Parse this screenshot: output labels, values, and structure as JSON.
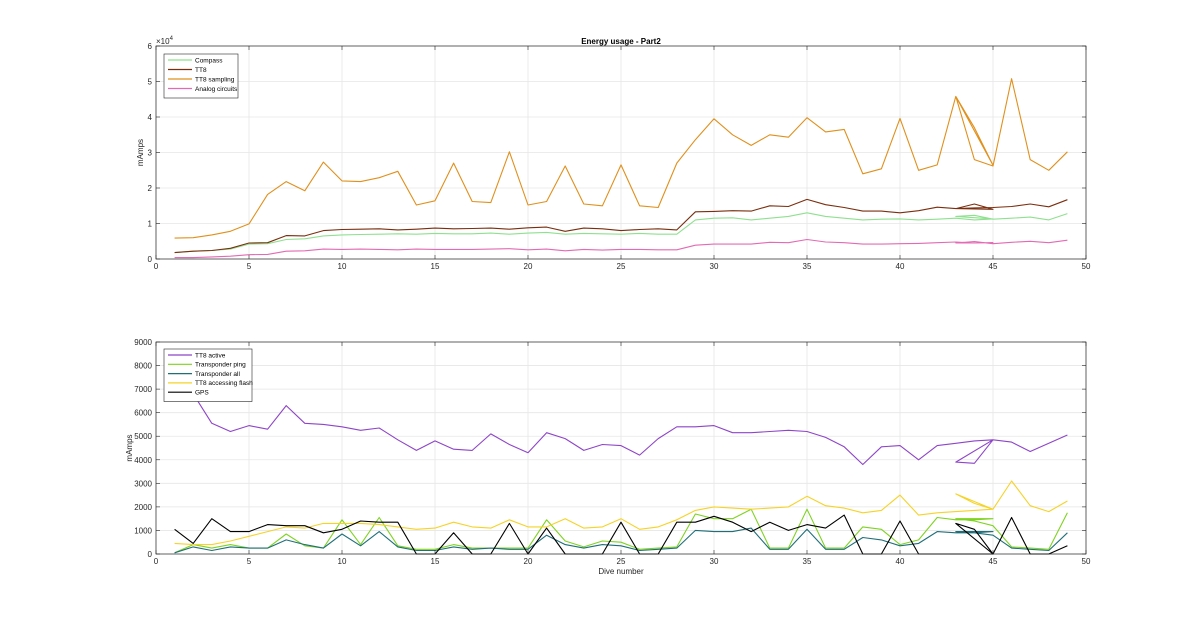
{
  "chart_data": [
    {
      "type": "line",
      "title": "Energy usage - Part2",
      "xlabel": "",
      "ylabel": "mAmps",
      "exponent_label": "×10",
      "exponent_power": "4",
      "xlim": [
        0,
        50
      ],
      "ylim": [
        0,
        60000
      ],
      "xticks": [
        0,
        5,
        10,
        15,
        20,
        25,
        30,
        35,
        40,
        45,
        50
      ],
      "yticks": [
        0,
        10000,
        20000,
        30000,
        40000,
        50000,
        60000
      ],
      "ytick_labels": [
        "0",
        "1",
        "2",
        "3",
        "4",
        "5",
        "6"
      ],
      "grid": true,
      "legend_position": "top-left",
      "x": [
        1,
        2,
        3,
        4,
        5,
        6,
        7,
        8,
        9,
        10,
        11,
        12,
        13,
        14,
        15,
        16,
        17,
        18,
        19,
        20,
        21,
        22,
        23,
        24,
        25,
        26,
        27,
        28,
        29,
        30,
        31,
        32,
        33,
        34,
        35,
        36,
        37,
        38,
        39,
        40,
        41,
        42,
        43,
        44,
        45,
        43,
        44,
        45,
        46,
        47,
        48,
        49
      ],
      "series": [
        {
          "name": "Compass",
          "color": "#8fe08f",
          "values": [
            1800,
            2200,
            2400,
            2800,
            4200,
            4300,
            5500,
            5700,
            6500,
            6800,
            6900,
            7000,
            7100,
            7000,
            7200,
            7100,
            7100,
            7300,
            7000,
            7300,
            7500,
            7000,
            7200,
            7100,
            7000,
            7200,
            7000,
            7000,
            11000,
            11500,
            11600,
            11000,
            11500,
            12000,
            13000,
            12000,
            11500,
            11000,
            11200,
            11300,
            11000,
            11200,
            11500,
            11000,
            11300,
            12000,
            12300,
            11200,
            11500,
            11800,
            11000,
            12800
          ]
        },
        {
          "name": "TT8",
          "color": "#7a2e0e",
          "values": [
            1800,
            2200,
            2400,
            3000,
            4500,
            4600,
            6600,
            6500,
            8000,
            8300,
            8400,
            8500,
            8200,
            8400,
            8700,
            8500,
            8600,
            8700,
            8400,
            8800,
            9000,
            7800,
            8700,
            8500,
            8000,
            8300,
            8500,
            8200,
            13300,
            13400,
            13600,
            13500,
            15000,
            14800,
            16800,
            15300,
            14500,
            13500,
            13500,
            13000,
            13600,
            14600,
            14200,
            15500,
            14000,
            14200,
            14400,
            14500,
            14800,
            15500,
            14700,
            16700
          ]
        },
        {
          "name": "TT8 sampling",
          "color": "#e0901c",
          "values": [
            5900,
            6000,
            6800,
            7800,
            9900,
            18200,
            21800,
            19200,
            27300,
            22000,
            21800,
            22900,
            24700,
            15200,
            16400,
            27000,
            16200,
            15900,
            30200,
            15200,
            16200,
            26200,
            15500,
            15000,
            26500,
            15000,
            14500,
            27000,
            33600,
            39500,
            35000,
            32000,
            35000,
            34300,
            39800,
            35800,
            36500,
            24000,
            25400,
            39600,
            25000,
            26500,
            45800,
            37000,
            26400,
            45800,
            28000,
            26200,
            50800,
            28000,
            25000,
            30200
          ]
        },
        {
          "name": "Analog circuits",
          "color": "#e36ab4",
          "values": [
            400,
            400,
            600,
            800,
            1200,
            1300,
            2200,
            2300,
            2800,
            2700,
            2800,
            2700,
            2600,
            2800,
            2700,
            2700,
            2700,
            2800,
            2900,
            2600,
            2800,
            2300,
            2700,
            2500,
            2700,
            2700,
            2600,
            2600,
            3900,
            4200,
            4200,
            4200,
            4700,
            4600,
            5500,
            4800,
            4600,
            4200,
            4200,
            4300,
            4400,
            4600,
            4800,
            4500,
            4600,
            4500,
            4900,
            4300,
            4700,
            5000,
            4600,
            5300
          ]
        }
      ]
    },
    {
      "type": "line",
      "title": "",
      "xlabel": "Dive number",
      "ylabel": "mAmps",
      "xlim": [
        0,
        50
      ],
      "ylim": [
        0,
        9000
      ],
      "xticks": [
        0,
        5,
        10,
        15,
        20,
        25,
        30,
        35,
        40,
        45,
        50
      ],
      "yticks": [
        0,
        1000,
        2000,
        3000,
        4000,
        5000,
        6000,
        7000,
        8000,
        9000
      ],
      "ytick_labels": [
        "0",
        "1000",
        "2000",
        "3000",
        "4000",
        "5000",
        "6000",
        "7000",
        "8000",
        "9000"
      ],
      "grid": true,
      "legend_position": "top-left",
      "x": [
        1,
        2,
        3,
        4,
        5,
        6,
        7,
        8,
        9,
        10,
        11,
        12,
        13,
        14,
        15,
        16,
        17,
        18,
        19,
        20,
        21,
        22,
        23,
        24,
        25,
        26,
        27,
        28,
        29,
        30,
        31,
        32,
        33,
        34,
        35,
        36,
        37,
        38,
        39,
        40,
        41,
        42,
        43,
        44,
        45,
        43,
        44,
        45,
        46,
        47,
        48,
        49
      ],
      "series": [
        {
          "name": "TT8 active",
          "color": "#8e44c8",
          "values": [
            7500,
            6800,
            5550,
            5200,
            5450,
            5300,
            6300,
            5550,
            5500,
            5400,
            5250,
            5350,
            4850,
            4400,
            4800,
            4450,
            4400,
            5100,
            4650,
            4300,
            5150,
            4900,
            4400,
            4650,
            4600,
            4200,
            4900,
            5400,
            5400,
            5450,
            5150,
            5150,
            5200,
            5250,
            5200,
            4950,
            4550,
            3800,
            4550,
            4600,
            4000,
            4600,
            4700,
            4800,
            4850,
            3900,
            3850,
            4850,
            4750,
            4350,
            4700,
            5050
          ]
        },
        {
          "name": "Transponder ping",
          "color": "#7ed321",
          "values": [
            50,
            400,
            250,
            400,
            250,
            250,
            850,
            350,
            250,
            1450,
            400,
            1550,
            350,
            200,
            200,
            400,
            250,
            250,
            250,
            250,
            1450,
            550,
            300,
            550,
            500,
            200,
            250,
            300,
            1700,
            1500,
            1500,
            1900,
            250,
            250,
            1900,
            250,
            250,
            1150,
            1050,
            400,
            600,
            1550,
            1450,
            1450,
            1500,
            1500,
            1400,
            1200,
            300,
            250,
            200,
            1750
          ]
        },
        {
          "name": "Transponder all",
          "color": "#1f6f7a",
          "values": [
            50,
            300,
            150,
            300,
            250,
            250,
            600,
            400,
            250,
            850,
            350,
            950,
            300,
            150,
            150,
            300,
            200,
            250,
            200,
            200,
            800,
            400,
            250,
            400,
            350,
            150,
            200,
            250,
            1000,
            950,
            950,
            1100,
            200,
            200,
            1050,
            200,
            200,
            700,
            600,
            350,
            450,
            950,
            900,
            900,
            950,
            950,
            900,
            800,
            250,
            200,
            150,
            900
          ]
        },
        {
          "name": "TT8 accessing flash",
          "color": "#f5d327",
          "values": [
            450,
            400,
            400,
            550,
            750,
            950,
            1150,
            1100,
            1300,
            1300,
            1300,
            1250,
            1150,
            1050,
            1100,
            1350,
            1150,
            1100,
            1450,
            1150,
            1150,
            1500,
            1100,
            1150,
            1500,
            1050,
            1150,
            1450,
            1850,
            2000,
            1950,
            1900,
            1950,
            2000,
            2450,
            2050,
            1950,
            1750,
            1850,
            2500,
            1650,
            1750,
            1800,
            1850,
            1900,
            2550,
            2150,
            1900,
            3100,
            2050,
            1800,
            2250
          ]
        },
        {
          "name": "GPS",
          "color": "#000000",
          "values": [
            1050,
            450,
            1500,
            950,
            950,
            1250,
            1200,
            1200,
            900,
            1050,
            1400,
            1350,
            1350,
            0,
            0,
            900,
            0,
            0,
            1300,
            0,
            1100,
            0,
            0,
            0,
            1350,
            0,
            0,
            1350,
            1350,
            1600,
            1350,
            950,
            1350,
            1000,
            1250,
            1100,
            1650,
            0,
            0,
            1400,
            0,
            0,
            0,
            0,
            0,
            1300,
            1050,
            0,
            1550,
            0,
            0,
            350
          ]
        }
      ]
    }
  ]
}
